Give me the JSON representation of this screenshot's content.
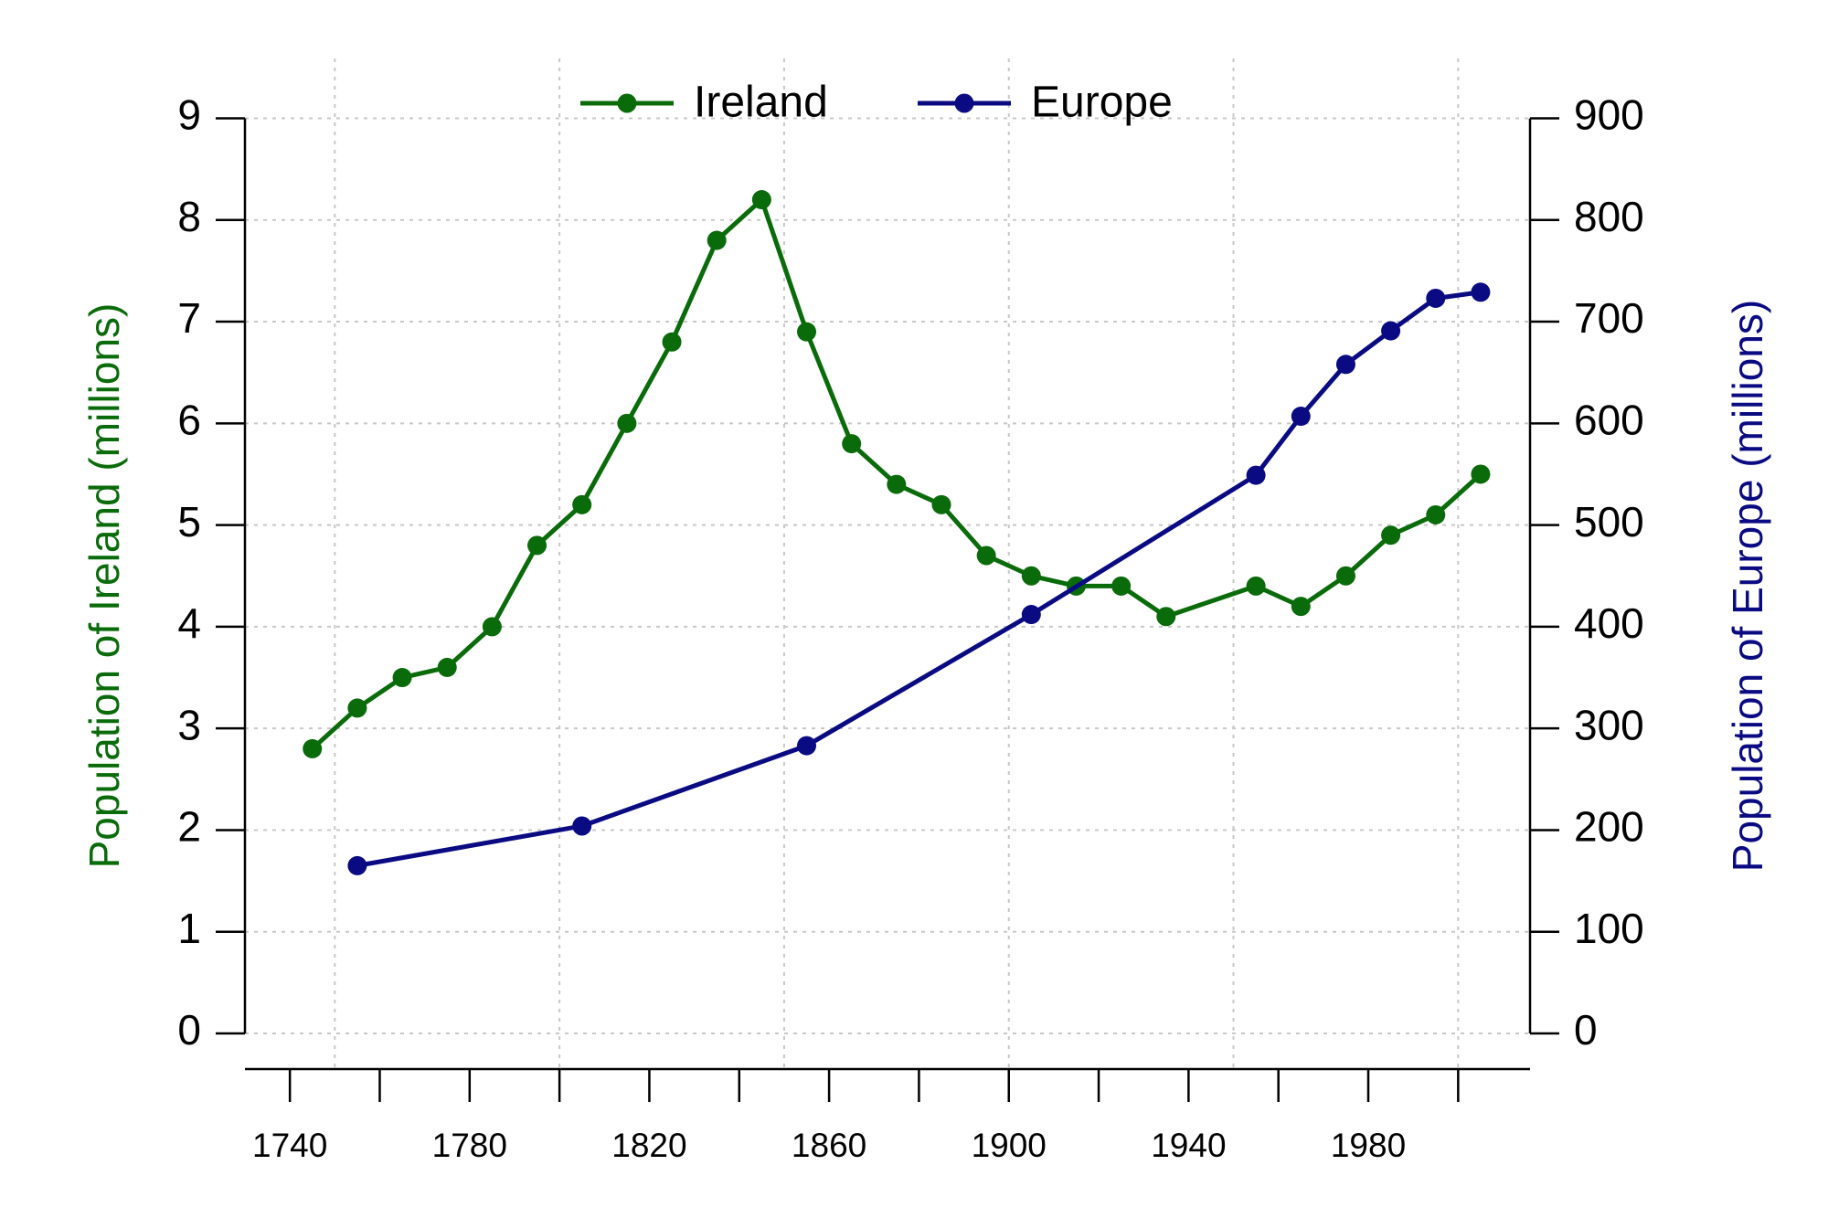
{
  "chart_data": {
    "type": "line",
    "y_label": "Population of Ireland (millions)",
    "y2_label": "Population of Europe (millions)",
    "xlim": [
      1730,
      2016
    ],
    "xticks": [
      1740,
      1780,
      1820,
      1860,
      1900,
      1940,
      1980
    ],
    "xminorticks": [
      1760,
      1800,
      1840,
      1880,
      1920,
      1960,
      2000
    ],
    "xgrid": [
      1750,
      1800,
      1850,
      1900,
      1950,
      2000
    ],
    "ylim": [
      0,
      9
    ],
    "yticks": [
      0,
      1,
      2,
      3,
      4,
      5,
      6,
      7,
      8,
      9
    ],
    "y2lim": [
      0,
      900
    ],
    "y2ticks": [
      0,
      100,
      200,
      300,
      400,
      500,
      600,
      700,
      800,
      900
    ],
    "grid": true,
    "legend": "top",
    "series": [
      {
        "name": "Ireland",
        "color": "#0a6b0a",
        "x": [
          1745,
          1755,
          1765,
          1775,
          1785,
          1795,
          1805,
          1815,
          1825,
          1835,
          1845,
          1855,
          1865,
          1875,
          1885,
          1895,
          1905,
          1915,
          1925,
          1935,
          1955,
          1965,
          1975,
          1985,
          1995,
          2005
        ],
        "values": [
          2.8,
          3.2,
          3.5,
          3.6,
          4.0,
          4.8,
          5.2,
          6.0,
          6.8,
          7.8,
          8.2,
          6.9,
          5.8,
          5.4,
          5.2,
          4.7,
          4.5,
          4.4,
          4.4,
          4.1,
          4.4,
          4.2,
          4.5,
          4.9,
          5.1,
          5.5
        ]
      },
      {
        "name": "Europe",
        "color": "#0a0a82",
        "axis": "y2",
        "x": [
          1755,
          1805,
          1855,
          1905,
          1955,
          1965,
          1975,
          1985,
          1995,
          2005
        ],
        "values": [
          165,
          204,
          283,
          412,
          549,
          607,
          658,
          691,
          723,
          729
        ]
      }
    ]
  }
}
